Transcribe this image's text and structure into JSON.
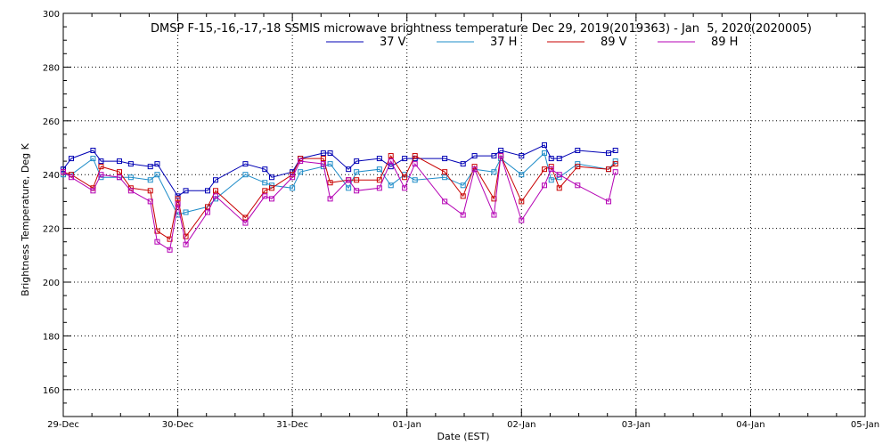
{
  "chart_data": {
    "type": "line",
    "title": "DMSP F-15,-16,-17,-18 SSMIS microwave brightness temperature Dec 29, 2019(2019363) - Jan  5, 2020(2020005)",
    "xlabel": "Date (EST)",
    "ylabel": "Brightness Temperature, Deg K",
    "ylim": [
      150,
      300
    ],
    "xlim_days": [
      0,
      7
    ],
    "grid": true,
    "legend_position": "top-center",
    "x_tick_labels": [
      "29-Dec",
      "30-Dec",
      "31-Dec",
      "01-Jan",
      "02-Jan",
      "03-Jan",
      "04-Jan",
      "05-Jan"
    ],
    "y_tick_labels": [
      "160",
      "180",
      "200",
      "220",
      "240",
      "260",
      "280",
      "300"
    ],
    "y_tick_values": [
      160,
      180,
      200,
      220,
      240,
      260,
      280,
      300
    ],
    "x_units": "days since 29-Dec 00:00 EST",
    "series": [
      {
        "name": "37 V",
        "color": "#0000b4",
        "x": [
          0.0,
          0.07,
          0.26,
          0.33,
          0.49,
          0.59,
          0.76,
          0.82,
          1.0,
          1.07,
          1.26,
          1.33,
          1.59,
          1.76,
          1.82,
          2.0,
          2.07,
          2.27,
          2.33,
          2.49,
          2.56,
          2.76,
          2.86,
          2.98,
          3.07,
          3.33,
          3.49,
          3.59,
          3.76,
          3.82,
          4.0,
          4.2,
          4.26,
          4.33,
          4.49,
          4.76,
          4.82
        ],
        "values": [
          242,
          246,
          249,
          245,
          245,
          244,
          243,
          244,
          232,
          234,
          234,
          238,
          244,
          242,
          239,
          241,
          246,
          248,
          248,
          242,
          245,
          246,
          243,
          246,
          246,
          246,
          244,
          247,
          247,
          249,
          247,
          251,
          246,
          246,
          249,
          248,
          249
        ]
      },
      {
        "name": "37 H",
        "color": "#1e8cc8",
        "x": [
          0.0,
          0.07,
          0.26,
          0.33,
          0.49,
          0.59,
          0.76,
          0.82,
          1.0,
          1.07,
          1.26,
          1.33,
          1.59,
          1.76,
          1.82,
          2.0,
          2.07,
          2.27,
          2.33,
          2.49,
          2.56,
          2.76,
          2.86,
          2.98,
          3.07,
          3.33,
          3.49,
          3.59,
          3.76,
          3.82,
          4.0,
          4.2,
          4.26,
          4.33,
          4.49,
          4.76,
          4.82
        ],
        "values": [
          240,
          240,
          246,
          239,
          239,
          239,
          238,
          240,
          225,
          226,
          228,
          231,
          240,
          237,
          236,
          235,
          241,
          243,
          244,
          235,
          241,
          242,
          236,
          240,
          238,
          239,
          236,
          242,
          241,
          246,
          240,
          248,
          238,
          239,
          244,
          242,
          245
        ]
      },
      {
        "name": "89 V",
        "color": "#c80000",
        "x": [
          0.0,
          0.07,
          0.26,
          0.33,
          0.49,
          0.59,
          0.76,
          0.82,
          0.93,
          1.0,
          1.07,
          1.26,
          1.33,
          1.59,
          1.76,
          1.82,
          2.0,
          2.07,
          2.27,
          2.33,
          2.49,
          2.56,
          2.76,
          2.86,
          2.98,
          3.07,
          3.33,
          3.49,
          3.59,
          3.76,
          3.82,
          4.0,
          4.2,
          4.26,
          4.33,
          4.49,
          4.76,
          4.82
        ],
        "values": [
          241,
          240,
          235,
          243,
          241,
          235,
          234,
          219,
          216,
          231,
          217,
          228,
          234,
          224,
          234,
          235,
          240,
          246,
          246,
          237,
          238,
          238,
          238,
          247,
          239,
          247,
          241,
          232,
          243,
          231,
          247,
          230,
          242,
          243,
          235,
          243,
          242,
          244
        ]
      },
      {
        "name": "89 H",
        "color": "#b400b4",
        "x": [
          0.0,
          0.07,
          0.26,
          0.33,
          0.49,
          0.59,
          0.76,
          0.82,
          0.93,
          1.0,
          1.07,
          1.26,
          1.33,
          1.59,
          1.76,
          1.82,
          2.0,
          2.07,
          2.27,
          2.33,
          2.49,
          2.56,
          2.76,
          2.86,
          2.98,
          3.07,
          3.33,
          3.49,
          3.59,
          3.76,
          3.82,
          4.0,
          4.2,
          4.26,
          4.33,
          4.49,
          4.76,
          4.82
        ],
        "values": [
          241,
          239,
          234,
          240,
          239,
          234,
          230,
          215,
          212,
          229,
          214,
          226,
          232,
          222,
          232,
          231,
          239,
          245,
          244,
          231,
          238,
          234,
          235,
          245,
          235,
          244,
          230,
          225,
          242,
          225,
          247,
          223,
          236,
          242,
          240,
          236,
          230,
          241
        ]
      }
    ]
  }
}
